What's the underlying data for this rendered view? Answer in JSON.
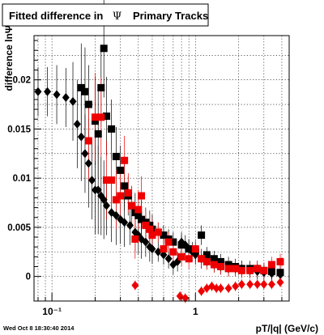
{
  "title_box": {
    "text_main": "Fitted difference in",
    "symbol": "Ψ",
    "text_tail": "Primary Tracks"
  },
  "footer_timestamp": "Wed Oct  8 18:30:40 2014",
  "chart_data": {
    "type": "scatter",
    "title": "Fitted difference in Ψ Primary Tracks",
    "xlabel": "pT/|q| (GeV/c)",
    "ylabel": "difference lnΨ",
    "x_scale": "log",
    "xlim": [
      0.075,
      4.5
    ],
    "ylim": [
      -0.0025,
      0.0245
    ],
    "grid": true,
    "x_ticks": [
      {
        "value": 0.1,
        "label": "10⁻¹"
      },
      {
        "value": 1,
        "label": "1"
      }
    ],
    "y_ticks": [
      {
        "value": 0,
        "label": "0"
      },
      {
        "value": 0.005,
        "label": "0.005"
      },
      {
        "value": 0.01,
        "label": "0.01"
      },
      {
        "value": 0.015,
        "label": "0.015"
      },
      {
        "value": 0.02,
        "label": "0.02"
      }
    ],
    "series": [
      {
        "marker": "diamond",
        "color": "#000000",
        "points": [
          [
            0.08,
            0.0188,
            0.0025
          ],
          [
            0.093,
            0.0188,
            0.0025
          ],
          [
            0.108,
            0.0185,
            0.003
          ],
          [
            0.125,
            0.0182,
            0.003
          ],
          [
            0.14,
            0.0178,
            0.004
          ],
          [
            0.15,
            0.0155,
            0.0045
          ],
          [
            0.16,
            0.0142,
            0.0045
          ],
          [
            0.17,
            0.0125,
            0.004
          ],
          [
            0.18,
            0.0115,
            0.0045
          ],
          [
            0.19,
            0.0098,
            0.004
          ],
          [
            0.2,
            0.0088,
            0.0045
          ],
          [
            0.21,
            0.0088,
            0.0045
          ],
          [
            0.22,
            0.0082,
            0.004
          ],
          [
            0.23,
            0.0078,
            0.004
          ],
          [
            0.24,
            0.0072,
            0.003
          ],
          [
            0.26,
            0.0065,
            0.003
          ],
          [
            0.28,
            0.0062,
            0.003
          ],
          [
            0.3,
            0.0058,
            0.0025
          ],
          [
            0.32,
            0.0055,
            0.0025
          ],
          [
            0.35,
            0.0052,
            0.002
          ],
          [
            0.38,
            0.0045,
            0.002
          ],
          [
            0.4,
            0.0042,
            0.002
          ],
          [
            0.42,
            0.0038,
            0.002
          ],
          [
            0.45,
            0.0035,
            0.0015
          ],
          [
            0.48,
            0.003,
            0.0015
          ],
          [
            0.5,
            0.0028,
            0.0015
          ],
          [
            0.55,
            0.0025,
            0.001
          ],
          [
            0.6,
            0.0022,
            0.001
          ],
          [
            0.65,
            0.0018,
            0.001
          ],
          [
            0.7,
            0.0012,
            0.001
          ],
          [
            0.75,
            0.0015,
            0.001
          ],
          [
            0.8,
            0.0035,
            0.001
          ],
          [
            0.85,
            0.0032,
            0.001
          ],
          [
            0.9,
            0.0028,
            0.001
          ],
          [
            0.95,
            0.0025,
            0.001
          ],
          [
            1.0,
            0.0022,
            0.001
          ],
          [
            1.1,
            0.0018,
            0.001
          ],
          [
            1.2,
            0.0015,
            0.0008
          ],
          [
            1.35,
            0.0012,
            0.0008
          ],
          [
            1.5,
            0.001,
            0.0008
          ],
          [
            1.7,
            0.0008,
            0.0008
          ],
          [
            1.9,
            0.0008,
            0.0008
          ],
          [
            2.1,
            0.0008,
            0.0008
          ],
          [
            2.4,
            0.0006,
            0.0008
          ],
          [
            2.7,
            0.0005,
            0.0008
          ],
          [
            3.0,
            0.0004,
            0.0008
          ],
          [
            3.4,
            0.0003,
            0.0008
          ],
          [
            3.9,
            0.0002,
            0.0008
          ]
        ]
      },
      {
        "marker": "square",
        "color": "#000000",
        "points": [
          [
            0.16,
            0.0192,
            0.0045
          ],
          [
            0.17,
            0.0188,
            0.0045
          ],
          [
            0.18,
            0.0175,
            0.004
          ],
          [
            0.2,
            0.0158,
            0.0045
          ],
          [
            0.21,
            0.0145,
            0.0045
          ],
          [
            0.22,
            0.0192,
            0.004
          ],
          [
            0.23,
            0.0232,
            0.005
          ],
          [
            0.24,
            0.0163,
            0.004
          ],
          [
            0.26,
            0.015,
            0.003
          ],
          [
            0.28,
            0.0122,
            0.003
          ],
          [
            0.3,
            0.0108,
            0.0025
          ],
          [
            0.32,
            0.0092,
            0.0025
          ],
          [
            0.34,
            0.0082,
            0.002
          ],
          [
            0.36,
            0.0072,
            0.002
          ],
          [
            0.38,
            0.0065,
            0.002
          ],
          [
            0.4,
            0.0062,
            0.002
          ],
          [
            0.42,
            0.0058,
            0.002
          ],
          [
            0.45,
            0.0055,
            0.0015
          ],
          [
            0.48,
            0.0052,
            0.0015
          ],
          [
            0.5,
            0.0048,
            0.0015
          ],
          [
            0.55,
            0.0045,
            0.001
          ],
          [
            0.6,
            0.0042,
            0.001
          ],
          [
            0.65,
            0.0038,
            0.001
          ],
          [
            0.7,
            0.0035,
            0.001
          ],
          [
            0.8,
            0.0032,
            0.001
          ],
          [
            0.9,
            0.0028,
            0.001
          ],
          [
            1.0,
            0.0025,
            0.001
          ],
          [
            1.1,
            0.0042,
            0.001
          ],
          [
            1.2,
            0.0022,
            0.0008
          ],
          [
            1.35,
            0.0018,
            0.0008
          ],
          [
            1.5,
            0.0015,
            0.0008
          ],
          [
            1.7,
            0.0012,
            0.0008
          ],
          [
            1.9,
            0.001,
            0.0008
          ],
          [
            2.1,
            0.0008,
            0.0008
          ],
          [
            2.4,
            0.0008,
            0.0008
          ],
          [
            2.7,
            0.0008,
            0.0008
          ],
          [
            3.0,
            0.0006,
            0.0008
          ],
          [
            3.4,
            0.0005,
            0.0008
          ],
          [
            3.9,
            0.0004,
            0.0008
          ]
        ]
      },
      {
        "marker": "square",
        "color": "#ee0000",
        "points": [
          [
            0.18,
            0.0138,
            0.004
          ],
          [
            0.2,
            0.0162,
            0.0045
          ],
          [
            0.22,
            0.0162,
            0.004
          ],
          [
            0.24,
            0.0098,
            0.004
          ],
          [
            0.26,
            0.0098,
            0.003
          ],
          [
            0.28,
            0.0078,
            0.003
          ],
          [
            0.3,
            0.0082,
            0.0025
          ],
          [
            0.32,
            0.0118,
            0.0025
          ],
          [
            0.34,
            0.0085,
            0.002
          ],
          [
            0.36,
            0.0072,
            0.002
          ],
          [
            0.38,
            0.0038,
            0.002
          ],
          [
            0.4,
            0.0068,
            0.002
          ],
          [
            0.42,
            0.0082,
            0.002
          ],
          [
            0.45,
            0.0052,
            0.0015
          ],
          [
            0.48,
            0.0048,
            0.0015
          ],
          [
            0.5,
            0.0042,
            0.0015
          ],
          [
            0.55,
            0.0045,
            0.001
          ],
          [
            0.6,
            0.0028,
            0.001
          ],
          [
            0.65,
            0.0035,
            0.001
          ],
          [
            0.7,
            0.0025,
            0.001
          ],
          [
            0.8,
            0.002,
            0.001
          ],
          [
            0.9,
            0.0018,
            0.001
          ],
          [
            1.0,
            0.0028,
            0.001
          ],
          [
            1.1,
            0.0018,
            0.001
          ],
          [
            1.2,
            0.0015,
            0.0008
          ],
          [
            1.35,
            0.0012,
            0.0008
          ],
          [
            1.5,
            0.001,
            0.0008
          ],
          [
            1.7,
            0.0008,
            0.0008
          ],
          [
            1.9,
            0.0008,
            0.0008
          ],
          [
            2.1,
            0.0006,
            0.0008
          ],
          [
            2.4,
            0.0006,
            0.0008
          ],
          [
            2.7,
            0.0008,
            0.0008
          ],
          [
            3.0,
            0.0006,
            0.0008
          ],
          [
            3.4,
            0.0012,
            0.0008
          ],
          [
            3.9,
            0.0015,
            0.0008
          ]
        ]
      },
      {
        "marker": "diamond",
        "color": "#ee0000",
        "points": [
          [
            0.38,
            -0.0009,
            0.0005
          ],
          [
            0.78,
            -0.002,
            0.0005
          ],
          [
            0.85,
            -0.0022,
            0.0005
          ],
          [
            1.1,
            -0.0015,
            0.0005
          ],
          [
            1.2,
            -0.0012,
            0.0005
          ],
          [
            1.3,
            -0.001,
            0.0005
          ],
          [
            1.4,
            -0.0012,
            0.0005
          ],
          [
            1.5,
            -0.0012,
            0.0005
          ],
          [
            1.7,
            -0.0012,
            0.0005
          ],
          [
            1.9,
            -0.001,
            0.0005
          ],
          [
            2.1,
            -0.0008,
            0.0005
          ],
          [
            2.4,
            -0.0008,
            0.0005
          ],
          [
            2.7,
            -0.0008,
            0.0005
          ],
          [
            3.0,
            -0.0008,
            0.0005
          ],
          [
            3.4,
            -0.0008,
            0.0005
          ],
          [
            3.9,
            -0.0006,
            0.0005
          ]
        ]
      }
    ]
  }
}
